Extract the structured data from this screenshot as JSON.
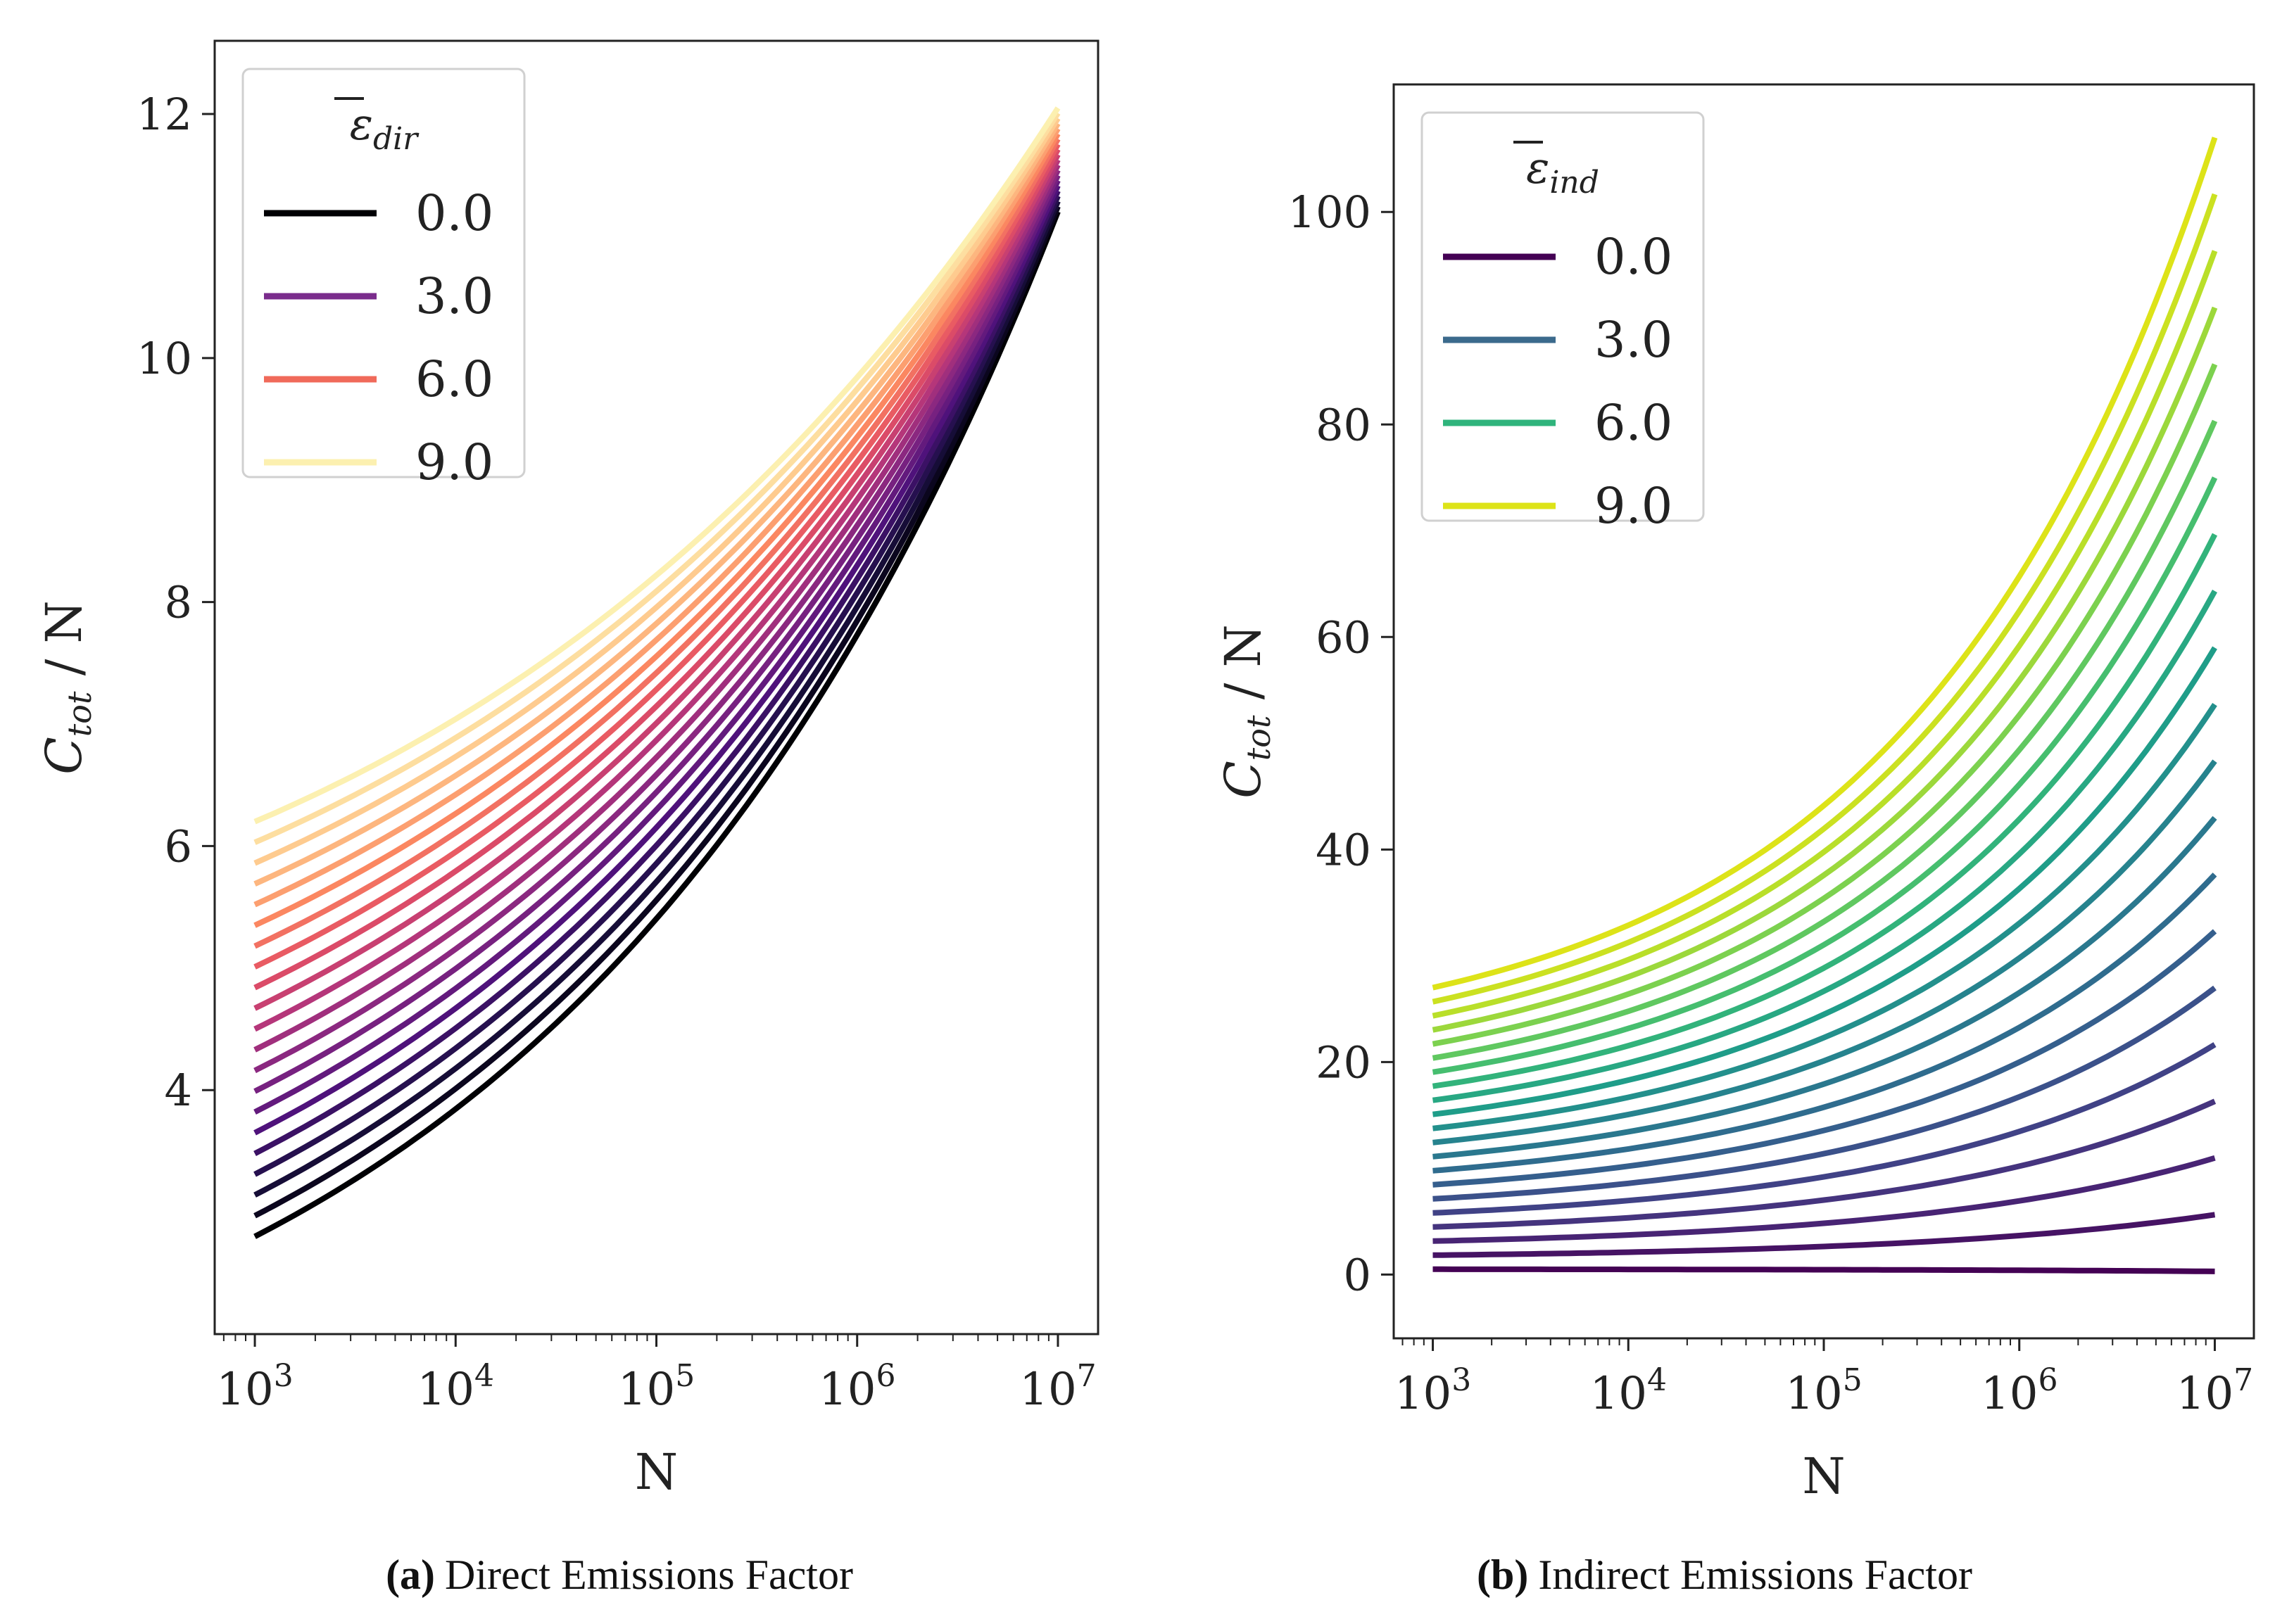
{
  "chart_data": [
    {
      "type": "line",
      "panel": "a",
      "caption_letter": "(a)",
      "caption_text": "Direct Emissions Factor",
      "xlabel": "N",
      "ylabel_main": "C",
      "ylabel_sub": "tot",
      "ylabel_tail": " / N",
      "x_scale": "log",
      "x_range": [
        1000,
        10000000
      ],
      "xlim_exp": [
        2.8,
        7.2
      ],
      "ylim": [
        2.0,
        12.6
      ],
      "x_ticks": [
        3,
        4,
        5,
        6,
        7
      ],
      "x_tick_base": "10",
      "y_ticks": [
        4,
        6,
        8,
        10,
        12
      ],
      "legend_title": "ε",
      "legend_title_sub": "dir",
      "legend_position": "top-left",
      "legend_entries": [
        {
          "label": "0.0",
          "color": "#000004"
        },
        {
          "label": "3.0",
          "color": "#7a2c8c"
        },
        {
          "label": "6.0",
          "color": "#f06a5a"
        },
        {
          "label": "9.0",
          "color": "#fcf0b0"
        }
      ],
      "colormap": "magma",
      "parameter_range": [
        0,
        10
      ],
      "n_curves": 21,
      "curves": {
        "start_values_at_1e3": [
          2.8,
          6.2
        ],
        "end_values_at_1e7": [
          11.2,
          12.05
        ]
      }
    },
    {
      "type": "line",
      "panel": "b",
      "caption_letter": "(b)",
      "caption_text": "Indirect Emissions Factor",
      "xlabel": "N",
      "ylabel_main": "C",
      "ylabel_sub": "tot",
      "ylabel_tail": " / N",
      "x_scale": "log",
      "x_range": [
        1000,
        10000000
      ],
      "xlim_exp": [
        2.8,
        7.2
      ],
      "ylim": [
        -6,
        112
      ],
      "x_ticks": [
        3,
        4,
        5,
        6,
        7
      ],
      "x_tick_base": "10",
      "y_ticks": [
        0,
        20,
        40,
        60,
        80,
        100
      ],
      "legend_title": "ε",
      "legend_title_sub": "ind",
      "legend_position": "top-left",
      "legend_entries": [
        {
          "label": "0.0",
          "color": "#440154"
        },
        {
          "label": "3.0",
          "color": "#3b6a8c"
        },
        {
          "label": "6.0",
          "color": "#2fb47c"
        },
        {
          "label": "9.0",
          "color": "#dde318"
        }
      ],
      "colormap": "viridis",
      "parameter_range": [
        0,
        10
      ],
      "n_curves": 21,
      "curves": {
        "start_values_at_1e3": [
          0.5,
          27
        ],
        "end_values_at_1e7": [
          0.3,
          107
        ]
      }
    }
  ]
}
